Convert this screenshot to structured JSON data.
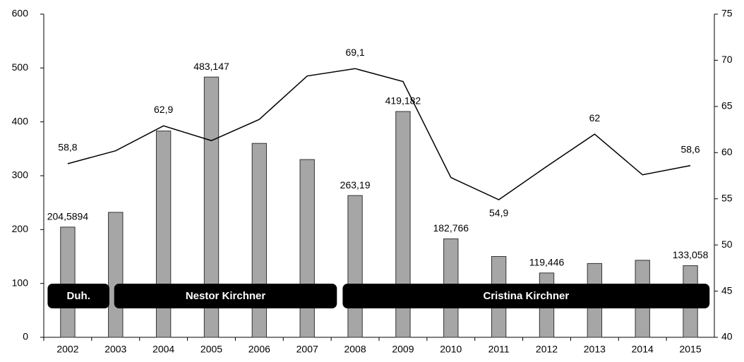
{
  "chart_data": {
    "type": "bar_line",
    "categories": [
      "2002",
      "2003",
      "2004",
      "2005",
      "2006",
      "2007",
      "2008",
      "2009",
      "2010",
      "2011",
      "2012",
      "2013",
      "2014",
      "2015"
    ],
    "series": [
      {
        "type": "bar",
        "color": "#a6a6a6",
        "axis": "y",
        "values": [
          204.5894,
          232,
          383,
          483.147,
          360,
          330,
          263.19,
          419.182,
          182.766,
          150,
          119.446,
          137,
          143,
          133.058
        ],
        "value_labels": [
          "204,5894",
          null,
          null,
          "483,147",
          null,
          null,
          "263,19",
          "419,182",
          "182,766",
          null,
          "119,446",
          null,
          null,
          "133,058"
        ]
      },
      {
        "type": "line",
        "color": "#000000",
        "axis": "y2",
        "values": [
          58.8,
          60.2,
          62.9,
          61.3,
          63.6,
          68.3,
          69.1,
          67.7,
          57.3,
          54.9,
          58.5,
          62,
          57.6,
          58.6
        ],
        "value_labels": [
          "58,8",
          null,
          "62,9",
          null,
          null,
          null,
          "69,1",
          null,
          null,
          "54,9",
          null,
          "62",
          null,
          "58,6"
        ]
      }
    ],
    "ylim": [
      0,
      600
    ],
    "yticks": [
      0,
      100,
      200,
      300,
      400,
      500,
      600
    ],
    "y2lim": [
      40,
      75
    ],
    "y2ticks": [
      40,
      45,
      50,
      55,
      60,
      65,
      70,
      75
    ],
    "annotations": [
      "Duh.",
      "Nestor Kirchner",
      "Cristina Kirchner"
    ]
  }
}
